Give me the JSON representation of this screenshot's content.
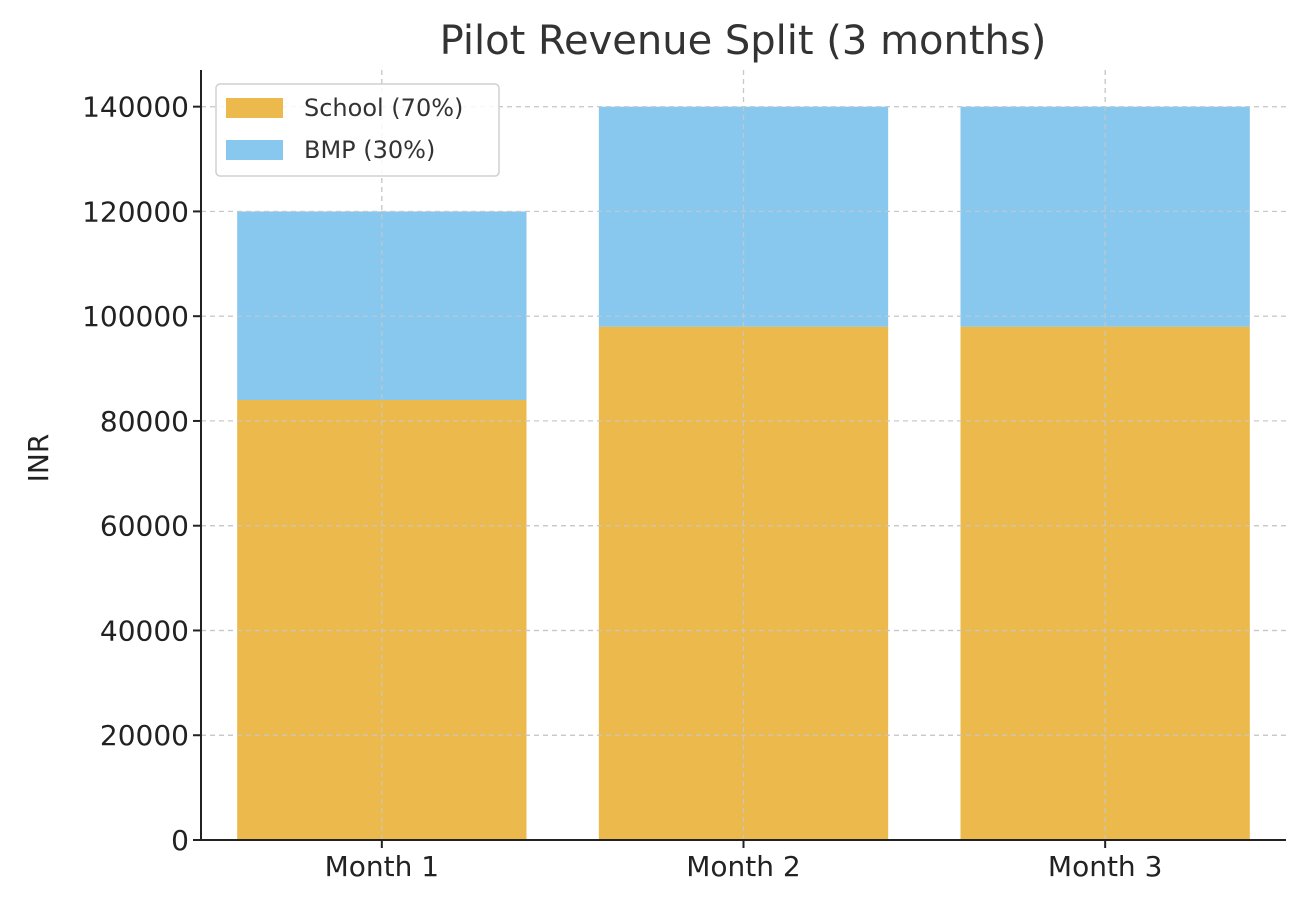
{
  "chart_data": {
    "type": "bar",
    "stacked": true,
    "title": "Pilot Revenue Split (3 months)",
    "xlabel": "",
    "ylabel": "INR",
    "categories": [
      "Month 1",
      "Month 2",
      "Month 3"
    ],
    "series": [
      {
        "name": "School (70%)",
        "values": [
          84000,
          98000,
          98000
        ],
        "color": "#ecb94c"
      },
      {
        "name": "BMP (30%)",
        "values": [
          36000,
          42000,
          42000
        ],
        "color": "#89c8ee"
      }
    ],
    "ylim": [
      0,
      147000
    ],
    "yticks": [
      0,
      20000,
      40000,
      60000,
      80000,
      100000,
      120000,
      140000
    ],
    "grid": true,
    "legend_position": "top-left"
  }
}
